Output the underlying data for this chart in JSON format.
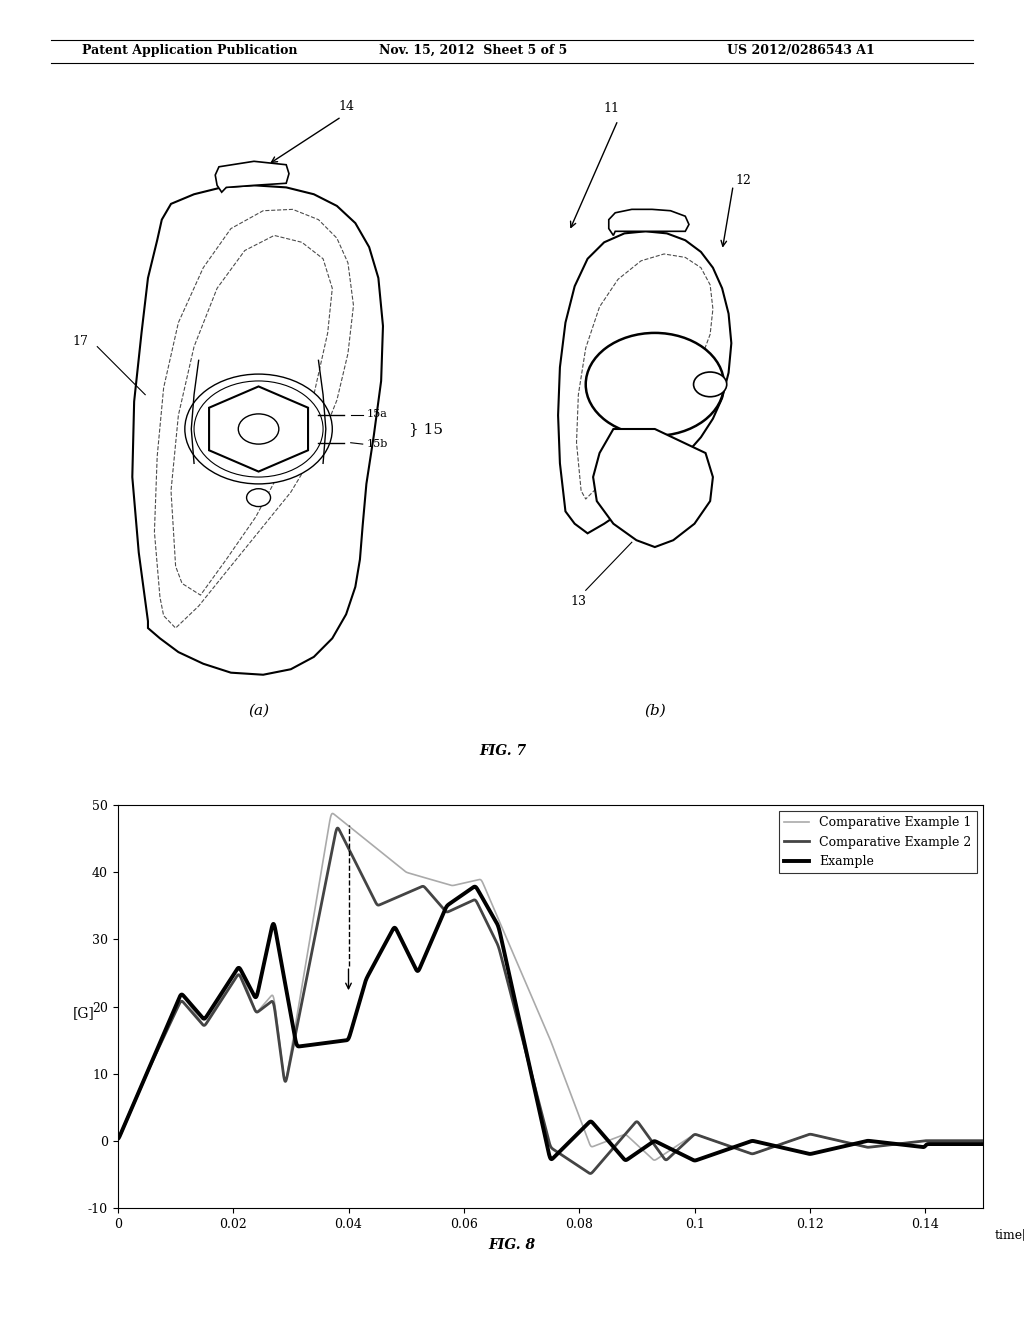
{
  "header_left": "Patent Application Publication",
  "header_mid": "Nov. 15, 2012  Sheet 5 of 5",
  "header_right": "US 2012/0286543 A1",
  "fig7_caption": "FIG. 7",
  "fig8_caption": "FIG. 8",
  "fig8_ylabel": "[G]",
  "fig8_xlabel": "time[S]",
  "fig8_ylim": [
    -10,
    50
  ],
  "fig8_xlim": [
    0,
    0.15
  ],
  "fig8_yticks": [
    -10,
    0,
    10,
    20,
    30,
    40,
    50
  ],
  "fig8_xticks": [
    0,
    0.02,
    0.04,
    0.06,
    0.08,
    0.1,
    0.12,
    0.14
  ],
  "legend_labels": [
    "Comparative Example 1",
    "Comparative Example 2",
    "Example"
  ],
  "legend_colors": [
    "#aaaaaa",
    "#444444",
    "#000000"
  ],
  "legend_lw": [
    1.2,
    2.0,
    2.8
  ],
  "background_color": "#ffffff"
}
